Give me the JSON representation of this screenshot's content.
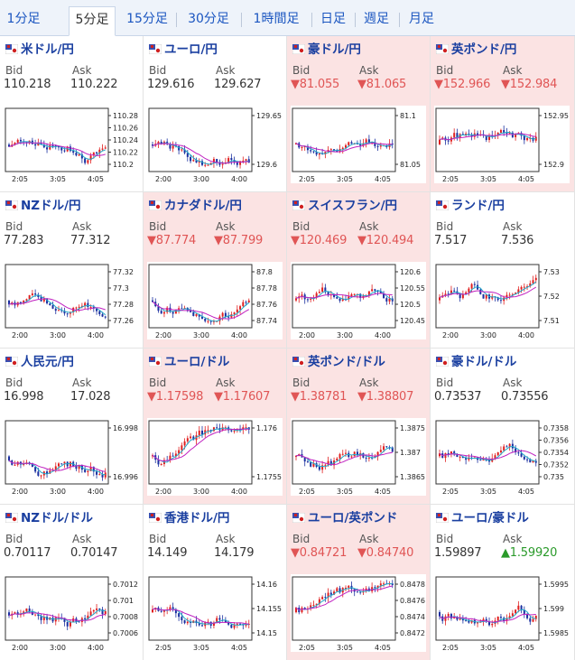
{
  "tabs": [
    {
      "label": "1分足",
      "active": false
    },
    {
      "label": "5分足",
      "active": true
    },
    {
      "label": "15分足",
      "active": false
    },
    {
      "label": "30分足",
      "active": false
    },
    {
      "label": "1時間足",
      "active": false
    },
    {
      "label": "日足",
      "active": false
    },
    {
      "label": "週足",
      "active": false
    },
    {
      "label": "月足",
      "active": false
    }
  ],
  "bid_label": "Bid",
  "ask_label": "Ask",
  "x_ticks": [
    "2:05",
    "3:05",
    "4:05"
  ],
  "colors": {
    "up_candle": "#e02020",
    "down_candle": "#1a2fa0",
    "ma_short": "#22a8c8",
    "ma_long": "#c020c0",
    "down_bg": "#fbe3e3",
    "down_text": "#e05555",
    "up_text": "#2a9a2a"
  },
  "pairs": [
    {
      "name": "米ドル/円",
      "flag": "us-jp-flag",
      "bid": "110.218",
      "ask": "110.222",
      "bid_dir": "",
      "ask_dir": "",
      "x_ticks": [
        "2:05",
        "3:05",
        "4:05"
      ],
      "y_ticks": [
        "110.28",
        "110.26",
        "110.24",
        "110.22",
        "110.2"
      ],
      "seed": 11
    },
    {
      "name": "ユーロ/円",
      "flag": "eu-jp-flag",
      "bid": "129.616",
      "ask": "129.627",
      "bid_dir": "",
      "ask_dir": "",
      "x_ticks": [
        "2:00",
        "3:00",
        "4:00"
      ],
      "y_ticks": [
        "129.65",
        "129.6"
      ],
      "seed": 23
    },
    {
      "name": "豪ドル/円",
      "flag": "au-jp-flag",
      "bid": "▼81.055",
      "ask": "▼81.065",
      "bid_dir": "dn",
      "ask_dir": "dn",
      "x_ticks": [
        "2:05",
        "3:05",
        "4:05"
      ],
      "y_ticks": [
        "81.1",
        "81.05"
      ],
      "seed": 37
    },
    {
      "name": "英ポンド/円",
      "flag": "gb-jp-flag",
      "bid": "▼152.966",
      "ask": "▼152.984",
      "bid_dir": "dn",
      "ask_dir": "dn",
      "x_ticks": [
        "2:05",
        "3:05",
        "4:05"
      ],
      "y_ticks": [
        "152.95",
        "152.9"
      ],
      "seed": 41
    },
    {
      "name": "NZドル/円",
      "flag": "nz-jp-flag",
      "bid": "77.283",
      "ask": "77.312",
      "bid_dir": "",
      "ask_dir": "",
      "x_ticks": [
        "2:00",
        "3:00",
        "4:00"
      ],
      "y_ticks": [
        "77.32",
        "77.3",
        "77.28",
        "77.26"
      ],
      "seed": 53
    },
    {
      "name": "カナダドル/円",
      "flag": "ca-jp-flag",
      "bid": "▼87.774",
      "ask": "▼87.799",
      "bid_dir": "dn",
      "ask_dir": "dn",
      "x_ticks": [
        "2:00",
        "3:00",
        "4:00"
      ],
      "y_ticks": [
        "87.8",
        "87.78",
        "87.76",
        "87.74"
      ],
      "seed": 67
    },
    {
      "name": "スイスフラン/円",
      "flag": "ch-jp-flag",
      "bid": "▼120.469",
      "ask": "▼120.494",
      "bid_dir": "dn",
      "ask_dir": "dn",
      "x_ticks": [
        "2:00",
        "3:00",
        "4:00"
      ],
      "y_ticks": [
        "120.6",
        "120.55",
        "120.5",
        "120.45"
      ],
      "seed": 71
    },
    {
      "name": "ランド/円",
      "flag": "za-jp-flag",
      "bid": "7.517",
      "ask": "7.536",
      "bid_dir": "",
      "ask_dir": "",
      "x_ticks": [
        "2:00",
        "3:00",
        "4:00"
      ],
      "y_ticks": [
        "7.53",
        "7.52",
        "7.51"
      ],
      "seed": 83
    },
    {
      "name": "人民元/円",
      "flag": "cn-jp-flag",
      "bid": "16.998",
      "ask": "17.028",
      "bid_dir": "",
      "ask_dir": "",
      "x_ticks": [
        "2:00",
        "3:00",
        "4:00"
      ],
      "y_ticks": [
        "16.998",
        "16.996"
      ],
      "seed": 97
    },
    {
      "name": "ユーロ/ドル",
      "flag": "eu-us-flag",
      "bid": "▼1.17598",
      "ask": "▼1.17607",
      "bid_dir": "dn",
      "ask_dir": "dn",
      "x_ticks": [
        "2:00",
        "3:00",
        "4:00"
      ],
      "y_ticks": [
        "1.176",
        "1.1755"
      ],
      "seed": 103
    },
    {
      "name": "英ポンド/ドル",
      "flag": "gb-us-flag",
      "bid": "▼1.38781",
      "ask": "▼1.38807",
      "bid_dir": "dn",
      "ask_dir": "dn",
      "x_ticks": [
        "2:05",
        "3:05",
        "4:05"
      ],
      "y_ticks": [
        "1.3875",
        "1.387",
        "1.3865"
      ],
      "seed": 113
    },
    {
      "name": "豪ドル/ドル",
      "flag": "au-us-flag",
      "bid": "0.73537",
      "ask": "0.73556",
      "bid_dir": "",
      "ask_dir": "",
      "x_ticks": [
        "2:05",
        "3:05",
        "4:05"
      ],
      "y_ticks": [
        "0.7358",
        "0.7356",
        "0.7354",
        "0.7352",
        "0.735"
      ],
      "seed": 127
    },
    {
      "name": "NZドル/ドル",
      "flag": "nz-us-flag",
      "bid": "0.70117",
      "ask": "0.70147",
      "bid_dir": "",
      "ask_dir": "",
      "x_ticks": [
        "2:00",
        "3:00",
        "4:00"
      ],
      "y_ticks": [
        "0.7012",
        "0.701",
        "0.7008",
        "0.7006"
      ],
      "seed": 131
    },
    {
      "name": "香港ドル/円",
      "flag": "hk-jp-flag",
      "bid": "14.149",
      "ask": "14.179",
      "bid_dir": "",
      "ask_dir": "",
      "x_ticks": [
        "2:05",
        "3:05",
        "4:05"
      ],
      "y_ticks": [
        "14.16",
        "14.155",
        "14.15"
      ],
      "seed": 149
    },
    {
      "name": "ユーロ/英ポンド",
      "flag": "eu-gb-flag",
      "bid": "▼0.84721",
      "ask": "▼0.84740",
      "bid_dir": "dn",
      "ask_dir": "dn",
      "x_ticks": [
        "2:05",
        "3:05",
        "4:05"
      ],
      "y_ticks": [
        "0.8478",
        "0.8476",
        "0.8474",
        "0.8472"
      ],
      "seed": 151
    },
    {
      "name": "ユーロ/豪ドル",
      "flag": "eu-au-flag",
      "bid": "1.59897",
      "ask": "▲1.59920",
      "bid_dir": "",
      "ask_dir": "up",
      "x_ticks": [
        "2:05",
        "3:05",
        "4:05"
      ],
      "y_ticks": [
        "1.5995",
        "1.599",
        "1.5985"
      ],
      "seed": 163
    }
  ]
}
